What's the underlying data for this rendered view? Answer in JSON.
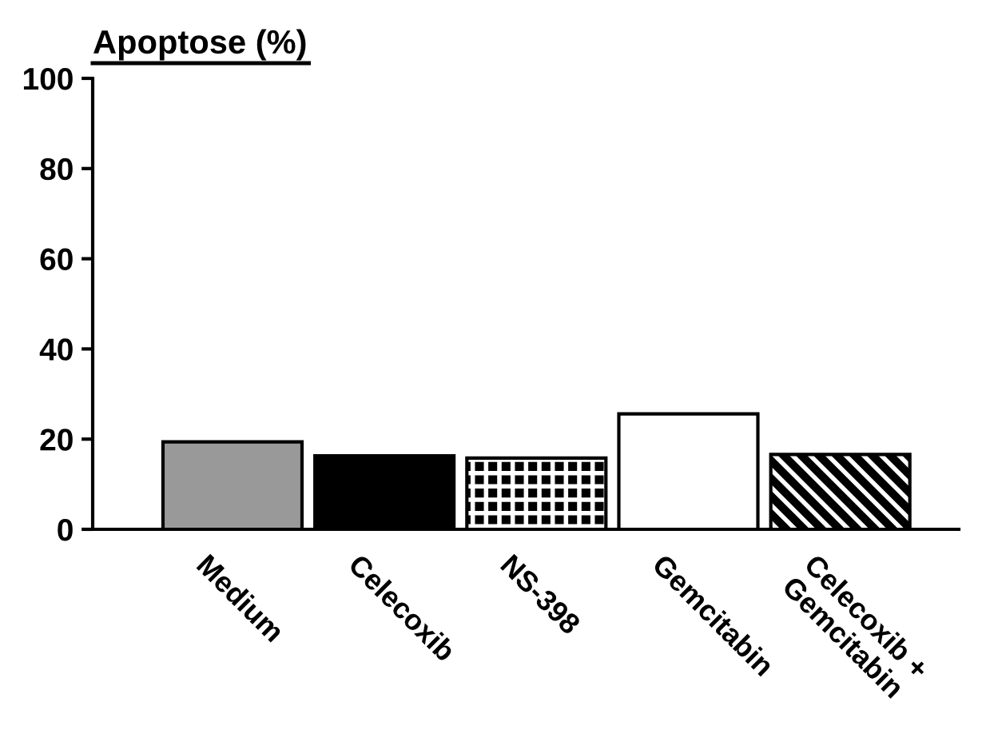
{
  "chart_data": {
    "type": "bar",
    "ylabel": "Apoptose (%)",
    "categories": [
      "Medium",
      "Celecoxib",
      "NS-398",
      "Gemcitabin",
      "Celecoxib +\nGemcitabin"
    ],
    "values": [
      19.4,
      16.3,
      15.8,
      25.6,
      16.6
    ],
    "colors": [
      "#999999",
      "#000000",
      "#000000",
      "#ffffff",
      "#000000"
    ],
    "ylim": [
      0,
      100
    ],
    "yticks": [
      0,
      20,
      40,
      60,
      80,
      100
    ],
    "grid": false,
    "legend": false
  }
}
